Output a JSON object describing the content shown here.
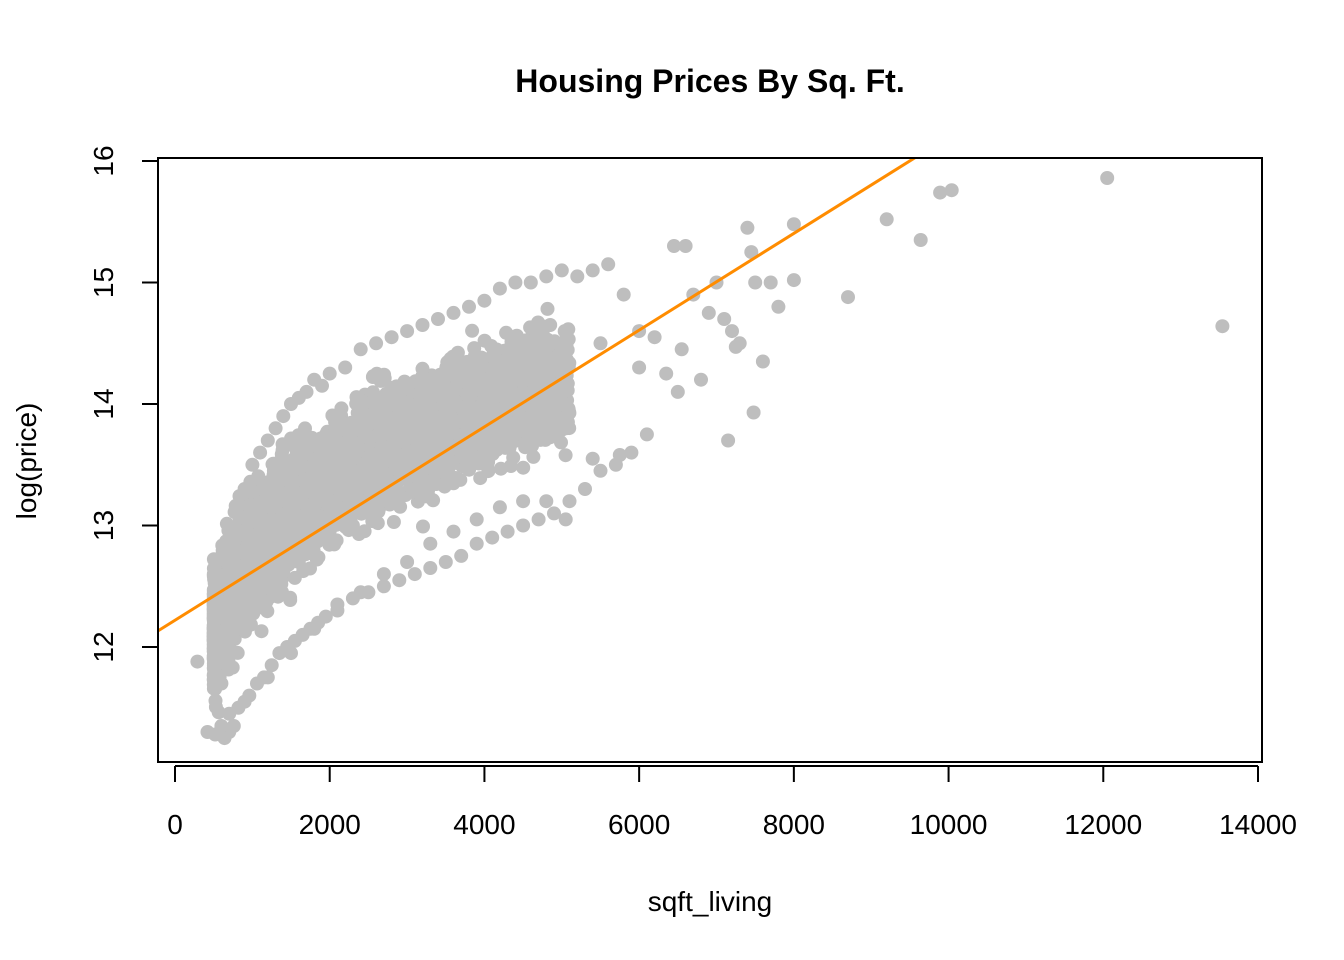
{
  "chart_data": {
    "type": "scatter",
    "title": "Housing Prices By Sq. Ft.",
    "xlabel": "sqft_living",
    "ylabel": "log(price)",
    "xlim": [
      0,
      14000
    ],
    "ylim": [
      11.1,
      16.0
    ],
    "x_ticks": [
      0,
      2000,
      4000,
      6000,
      8000,
      10000,
      12000,
      14000
    ],
    "y_ticks": [
      12,
      13,
      14,
      15,
      16
    ],
    "grid": false,
    "legend": "none",
    "point_color": "#bebebe",
    "line_color": "#ff8c00",
    "series": [
      {
        "kind": "points",
        "x": [
          290,
          420,
          520,
          560,
          600,
          640,
          660,
          700,
          720,
          760,
          800,
          820,
          880,
          900,
          960,
          1000,
          1060,
          1100,
          1150,
          1200,
          1250,
          1300,
          1350,
          1400,
          1450,
          1500,
          1550,
          1600,
          1650,
          1700,
          1750,
          1800,
          1850,
          1900,
          1950,
          2000,
          2100,
          2200,
          2300,
          2400,
          2500,
          2600,
          2700,
          2800,
          2900,
          3000,
          3100,
          3200,
          3300,
          3400,
          3500,
          3600,
          3700,
          3800,
          3900,
          4000,
          4100,
          4200,
          4300,
          4400,
          4500,
          4600,
          4700,
          4800,
          4900,
          5000,
          5100,
          5200,
          5300,
          5400,
          5500,
          5600,
          5700,
          5800,
          5900,
          6000,
          6100,
          6200,
          6350,
          6450,
          6550,
          6600,
          6700,
          6800,
          6900,
          7000,
          7100,
          7200,
          7300,
          7400,
          7450,
          7500,
          7600,
          7700,
          7800,
          8000,
          8000,
          8700,
          9200,
          9640,
          9890,
          10040,
          12050,
          13540,
          7480,
          7250,
          7150,
          5750,
          5400,
          5050,
          4800,
          4500,
          4200,
          3900,
          3600,
          3300,
          3000,
          2700,
          2400,
          2100,
          1800,
          1500,
          1200,
          900,
          700,
          600,
          2000,
          2500,
          3000,
          3500,
          4000,
          4500,
          5000,
          5500,
          6000,
          6500,
          1000,
          1500,
          2000,
          2500,
          3000,
          3500,
          4000,
          4500,
          1300,
          1700,
          2200,
          2800,
          3400,
          3800,
          4400,
          800,
          1100,
          1600,
          2300,
          2900,
          3200,
          3700,
          4100
        ],
        "y": [
          11.88,
          11.3,
          11.28,
          12.55,
          11.7,
          11.25,
          12.0,
          11.45,
          12.9,
          11.35,
          13.1,
          11.5,
          12.4,
          13.3,
          11.6,
          13.5,
          11.7,
          13.6,
          11.75,
          13.7,
          11.85,
          13.8,
          11.95,
          13.9,
          12.0,
          14.0,
          12.05,
          14.05,
          12.1,
          14.1,
          12.15,
          14.2,
          12.2,
          14.15,
          12.25,
          14.25,
          12.35,
          14.3,
          12.4,
          14.45,
          12.45,
          14.5,
          12.5,
          14.55,
          12.55,
          14.6,
          12.6,
          14.65,
          12.65,
          14.7,
          12.7,
          14.75,
          12.75,
          14.8,
          12.85,
          14.85,
          12.9,
          14.95,
          12.95,
          15.0,
          13.0,
          15.0,
          13.05,
          15.05,
          13.1,
          15.1,
          13.2,
          15.05,
          13.3,
          15.1,
          13.45,
          15.15,
          13.5,
          14.9,
          13.6,
          14.6,
          13.75,
          14.55,
          14.25,
          15.3,
          14.45,
          15.3,
          14.9,
          14.2,
          14.75,
          15.0,
          14.7,
          14.6,
          14.5,
          15.45,
          15.25,
          15.0,
          14.35,
          15.0,
          14.8,
          15.48,
          15.02,
          14.88,
          15.52,
          15.35,
          15.74,
          15.76,
          15.86,
          14.64,
          13.93,
          14.47,
          13.7,
          13.58,
          13.55,
          13.05,
          13.2,
          13.2,
          13.15,
          13.05,
          12.95,
          12.85,
          12.7,
          12.6,
          12.45,
          12.3,
          12.15,
          11.95,
          11.75,
          11.55,
          11.3,
          11.35,
          13.0,
          13.3,
          13.5,
          13.7,
          13.9,
          14.1,
          14.3,
          14.5,
          14.3,
          14.1,
          12.6,
          12.9,
          13.2,
          13.4,
          13.6,
          13.85,
          14.1,
          14.3,
          12.8,
          13.1,
          13.35,
          13.6,
          13.8,
          14.0,
          14.2,
          12.2,
          12.5,
          12.7,
          13.0,
          13.25,
          13.45,
          13.65,
          13.95
        ]
      },
      {
        "kind": "line",
        "name": "",
        "intercept": 12.22,
        "slope": 0.000398
      }
    ]
  }
}
